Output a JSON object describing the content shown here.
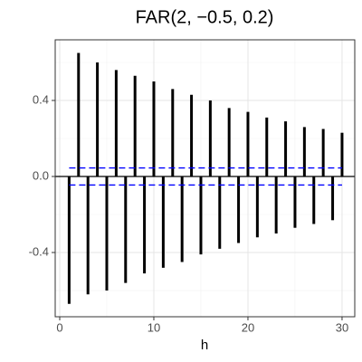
{
  "chart_data": {
    "type": "acf",
    "title": "FAR(2, −0.5, 0.2)",
    "x_label": "h",
    "x": [
      1,
      2,
      3,
      4,
      5,
      6,
      7,
      8,
      9,
      10,
      11,
      12,
      13,
      14,
      15,
      16,
      17,
      18,
      19,
      20,
      21,
      22,
      23,
      24,
      25,
      26,
      27,
      28,
      29,
      30
    ],
    "values": [
      -0.67,
      0.65,
      -0.62,
      0.6,
      -0.6,
      0.56,
      -0.56,
      0.53,
      -0.51,
      0.5,
      -0.48,
      0.46,
      -0.45,
      0.43,
      -0.41,
      0.4,
      -0.38,
      0.36,
      -0.35,
      0.34,
      -0.32,
      0.31,
      -0.3,
      0.29,
      -0.27,
      0.26,
      -0.25,
      0.25,
      -0.23,
      0.23
    ],
    "color": "#000000",
    "bounds": [
      0.045,
      -0.045
    ],
    "bounds_color": "#0000ff",
    "xlim": [
      -0.48,
      31.35
    ],
    "ylim": [
      -0.738,
      0.719
    ],
    "xticks": [
      0,
      10,
      20,
      30
    ],
    "yticks": [
      -0.4,
      {
        "value": 0,
        "label": "0.0"
      },
      0.4
    ],
    "minor_xticks": [
      5,
      15,
      25
    ],
    "minor_yticks": [
      -0.6,
      -0.2,
      0.2,
      0.6
    ],
    "grid": true
  }
}
